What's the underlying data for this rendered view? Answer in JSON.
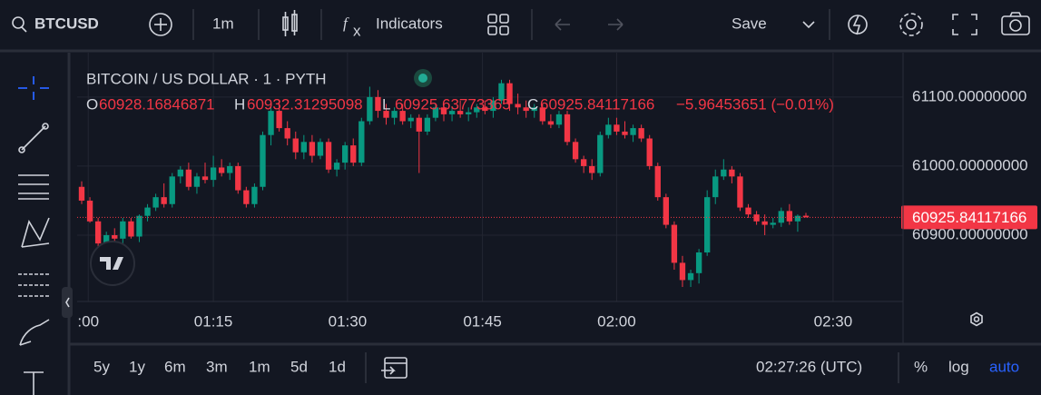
{
  "toolbar": {
    "symbol": "BTCUSD",
    "interval": "1m",
    "indicators": "Indicators",
    "save": "Save"
  },
  "bottom": {
    "ranges": [
      "5y",
      "1y",
      "6m",
      "3m",
      "1m",
      "5d",
      "1d"
    ],
    "time": "02:27:26 (UTC)",
    "percent": "%",
    "log": "log",
    "auto": "auto"
  },
  "chart_data": {
    "type": "candlestick",
    "title": "BITCOIN / US DOLLAR · 1 · PYTH",
    "ohlc_labels": [
      "O",
      "H",
      "L",
      "C"
    ],
    "change": "−5.96453651 (−0.01%)",
    "up_color": "#089981",
    "down_color": "#f23645",
    "open": [
      60970,
      60950,
      60920,
      60888,
      60900,
      60895,
      60920,
      60898,
      60928,
      60940,
      60955,
      60945,
      60985,
      60995,
      60970,
      60985,
      60980,
      60998,
      60990,
      61000,
      60965,
      60945,
      60970,
      61045,
      61080,
      61055,
      61040,
      61020,
      61035,
      61015,
      61035,
      60995,
      61005,
      61030,
      61005,
      61065,
      61100,
      61080,
      61070,
      61080,
      61065,
      61070,
      61050,
      61070,
      61085,
      61075,
      61080,
      61075,
      61078,
      61085,
      61080,
      61095,
      61120,
      61090,
      61085,
      61080,
      61085,
      61065,
      61060,
      61075,
      61035,
      61010,
      61000,
      60990,
      61045,
      61060,
      61050,
      61045,
      61055,
      61040,
      61000,
      60955,
      60915,
      60860,
      60835,
      60845,
      60875,
      60955,
      60985,
      60995,
      60985,
      60940,
      60930,
      60920,
      60915,
      60918,
      60935,
      60920,
      60928.16846871
    ],
    "high": [
      60978,
      60955,
      60925,
      60905,
      60910,
      60925,
      60925,
      60930,
      60945,
      60960,
      60975,
      60990,
      61000,
      61005,
      60990,
      61005,
      61015,
      61010,
      61005,
      61005,
      60970,
      60975,
      61050,
      61090,
      61095,
      61065,
      61050,
      61045,
      61045,
      61040,
      61040,
      61010,
      61035,
      61040,
      61070,
      61115,
      61110,
      61090,
      61085,
      61090,
      61075,
      61075,
      61075,
      61090,
      61090,
      61085,
      61095,
      61085,
      61090,
      61095,
      61100,
      61125,
      61125,
      61105,
      61095,
      61090,
      61090,
      61075,
      61080,
      61080,
      61040,
      61015,
      61010,
      61050,
      61070,
      61070,
      61065,
      61060,
      61060,
      61045,
      61005,
      60960,
      60920,
      60870,
      60850,
      60880,
      60965,
      60995,
      61010,
      61000,
      60990,
      60945,
      60935,
      60930,
      60925,
      60940,
      60945,
      60930,
      60932.31295098
    ],
    "low": [
      60945,
      60918,
      60880,
      60880,
      60890,
      60885,
      60895,
      60890,
      60920,
      60935,
      60940,
      60940,
      60975,
      60965,
      60960,
      60975,
      60970,
      60985,
      60980,
      60960,
      60940,
      60940,
      60965,
      61030,
      61050,
      61030,
      61010,
      61010,
      61005,
      61010,
      60990,
      60985,
      60995,
      61000,
      61000,
      61060,
      61070,
      61060,
      61060,
      61060,
      61055,
      60990,
      61045,
      61065,
      61065,
      61065,
      61070,
      61065,
      61070,
      61075,
      61070,
      61090,
      61080,
      61075,
      61070,
      61070,
      61060,
      61055,
      61055,
      61030,
      61005,
      60990,
      60980,
      60985,
      61040,
      61045,
      61040,
      61035,
      61035,
      60995,
      60950,
      60910,
      60850,
      60825,
      60825,
      60830,
      60870,
      60945,
      60980,
      60975,
      60935,
      60925,
      60915,
      60900,
      60910,
      60912,
      60915,
      60905,
      60925.63773365
    ],
    "close": [
      60950,
      60920,
      60888,
      60900,
      60895,
      60920,
      60898,
      60928,
      60940,
      60955,
      60945,
      60985,
      60995,
      60970,
      60985,
      60980,
      60998,
      60990,
      61000,
      60965,
      60945,
      60970,
      61045,
      61080,
      61055,
      61040,
      61020,
      61035,
      61015,
      61035,
      60995,
      61005,
      61030,
      61005,
      61065,
      61100,
      61080,
      61070,
      61080,
      61065,
      61070,
      61050,
      61070,
      61085,
      61075,
      61080,
      61075,
      61078,
      61085,
      61080,
      61095,
      61120,
      61090,
      61085,
      61080,
      61085,
      61065,
      61060,
      61075,
      61035,
      61010,
      61000,
      60990,
      61045,
      61060,
      61050,
      61045,
      61055,
      61040,
      61000,
      60955,
      60915,
      60860,
      60835,
      60845,
      60875,
      60955,
      60985,
      60995,
      60985,
      60940,
      60930,
      60920,
      60915,
      60918,
      60935,
      60920,
      60928,
      60925.84117166
    ],
    "last_price_label": "60925.84117166",
    "ylim": [
      60804,
      61159
    ],
    "yticks": [
      {
        "value": 60900,
        "label": "60900.00000000"
      },
      {
        "value": 61000,
        "label": "61000.00000000"
      },
      {
        "value": 61100,
        "label": "61100.00000000"
      }
    ],
    "xlim": [
      -0.55,
      99.8
    ],
    "xticks": [
      {
        "value": 0.8,
        "label": ":00"
      },
      {
        "value": 16,
        "label": "01:15"
      },
      {
        "value": 32.3,
        "label": "01:30"
      },
      {
        "value": 48.7,
        "label": "01:45"
      },
      {
        "value": 65,
        "label": "02:00"
      },
      {
        "value": 91.3,
        "label": "02:30"
      }
    ],
    "grid": true
  }
}
